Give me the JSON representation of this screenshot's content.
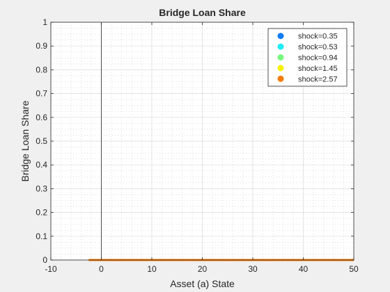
{
  "chart_data": {
    "type": "scatter",
    "title": "Bridge Loan Share",
    "xlabel": "Asset (a) State",
    "ylabel": "Bridge Loan Share",
    "xlim": [
      -10,
      50
    ],
    "ylim": [
      0,
      1
    ],
    "xticks": [
      -10,
      0,
      10,
      20,
      30,
      40,
      50
    ],
    "yticks": [
      0,
      0.1,
      0.2,
      0.3,
      0.4,
      0.5,
      0.6,
      0.7,
      0.8,
      0.9,
      1
    ],
    "grid": true,
    "minor_grid": true,
    "legend_position": "top-right",
    "x_zero_line": true,
    "x_data_range": [
      -2.5,
      50
    ],
    "series": [
      {
        "name": "shock=0.35",
        "color": "#0f7cf0",
        "value": 0
      },
      {
        "name": "shock=0.53",
        "color": "#1eecf4",
        "value": 0
      },
      {
        "name": "shock=0.94",
        "color": "#77f77e",
        "value": 0
      },
      {
        "name": "shock=1.45",
        "color": "#f8f000",
        "value": 0
      },
      {
        "name": "shock=2.57",
        "color": "#f97b06",
        "value": 0
      }
    ]
  }
}
